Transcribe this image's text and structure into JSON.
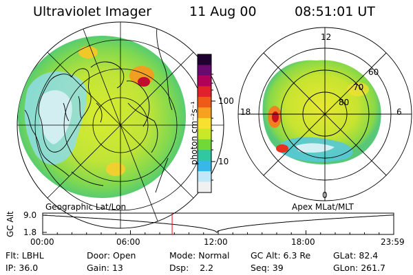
{
  "header": {
    "instrument": "Ultraviolet Imager",
    "date": "11 Aug 00",
    "time": "08:51:01 UT"
  },
  "colorbar": {
    "unit_label": "photon cm⁻²s⁻¹",
    "ticks": [
      "100",
      "10"
    ],
    "colors": [
      "#200030",
      "#6a0a6e",
      "#b0005a",
      "#e0202a",
      "#f05a18",
      "#f8a020",
      "#f8e030",
      "#c8e828",
      "#70d838",
      "#30c8a0",
      "#38b8e8",
      "#c0e8f8",
      "#f0f0f0"
    ]
  },
  "geo_panel": {
    "caption": "Geographic Lat/Lon"
  },
  "apex_panel": {
    "caption": "Apex MLat/MLT",
    "mlt_labels": [
      "12",
      "18",
      "6",
      "0"
    ],
    "lat_labels": [
      "60",
      "70",
      "80"
    ]
  },
  "timeline": {
    "ylabel": "GC Alt",
    "yticks": [
      "9.0",
      "1.8"
    ],
    "xticks": [
      "00:00",
      "06:00",
      "12:00",
      "18:00",
      "23:59"
    ],
    "marker_time_hours": 8.85,
    "marker_color": "#ff0000"
  },
  "info": {
    "row1": [
      {
        "label": "Flt:",
        "value": "LBHL"
      },
      {
        "label": "Door:",
        "value": "Open"
      },
      {
        "label": "Mode:",
        "value": "Normal"
      },
      {
        "label": "GC Alt:",
        "value": "6.3 Re"
      },
      {
        "label": "GLat:",
        "value": "82.4"
      }
    ],
    "row2": [
      {
        "label": "IP:",
        "value": "36.0"
      },
      {
        "label": "Gain:",
        "value": "13"
      },
      {
        "label": "Dsp:",
        "value": "2.2"
      },
      {
        "label": "Seq:",
        "value": "39"
      },
      {
        "label": "GLon:",
        "value": "261.7"
      }
    ]
  }
}
